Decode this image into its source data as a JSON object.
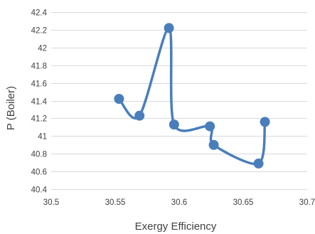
{
  "chart_data": {
    "type": "scatter",
    "title": "",
    "xlabel": "Exergy Efficiency",
    "ylabel": "P (Boiler)",
    "xlim": [
      30.5,
      30.7
    ],
    "ylim": [
      40.4,
      42.4
    ],
    "x_ticks": [
      "30.5",
      "30.55",
      "30.6",
      "30.65",
      "30.7"
    ],
    "y_ticks": [
      "40.4",
      "40.6",
      "40.8",
      "41",
      "41.2",
      "41.4",
      "41.6",
      "41.8",
      "42",
      "42.2",
      "42.4"
    ],
    "grid": "horizontal",
    "legend": "none",
    "line_style": "smoothed",
    "series": [
      {
        "color": "#4a7ebb",
        "points": [
          {
            "x": 30.553,
            "y": 41.42
          },
          {
            "x": 30.569,
            "y": 41.23
          },
          {
            "x": 30.592,
            "y": 42.22
          },
          {
            "x": 30.596,
            "y": 41.13
          },
          {
            "x": 30.624,
            "y": 41.11
          },
          {
            "x": 30.627,
            "y": 40.9
          },
          {
            "x": 30.662,
            "y": 40.69
          },
          {
            "x": 30.667,
            "y": 41.16
          }
        ]
      }
    ]
  }
}
